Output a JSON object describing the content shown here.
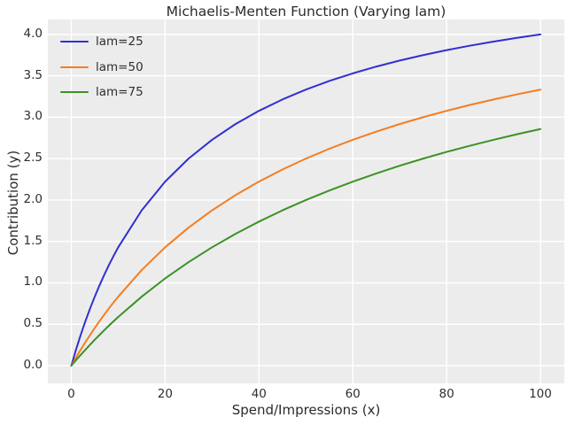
{
  "figure": {
    "background": "#ffffff",
    "axes_background": "#ececec",
    "grid_color": "#ffffff",
    "text_color": "#2e2e2e"
  },
  "chart_data": {
    "type": "line",
    "title": "Michaelis-Menten Function (Varying lam)",
    "xlabel": "Spend/Impressions (x)",
    "ylabel": "Contribution (y)",
    "grid": true,
    "legend_position": "upper left",
    "xlim": [
      -5,
      105.1
    ],
    "ylim": [
      -0.214,
      4.18
    ],
    "x_tick_labels": [
      "0",
      "20",
      "40",
      "60",
      "80",
      "100"
    ],
    "x_tick_values": [
      0,
      20,
      40,
      60,
      80,
      100
    ],
    "y_tick_labels": [
      "0.0",
      "0.5",
      "1.0",
      "1.5",
      "2.0",
      "2.5",
      "3.0",
      "3.5",
      "4.0"
    ],
    "y_tick_values": [
      0,
      0.5,
      1,
      1.5,
      2,
      2.5,
      3,
      3.5,
      4
    ],
    "x": [
      0,
      1,
      2,
      3,
      4,
      5,
      6,
      7,
      8,
      9,
      10,
      15,
      20,
      25,
      30,
      35,
      40,
      45,
      50,
      55,
      60,
      65,
      70,
      75,
      80,
      85,
      90,
      95,
      100
    ],
    "series": [
      {
        "name": "lam=25",
        "color": "#3030d0",
        "y": [
          0,
          0.192,
          0.37,
          0.536,
          0.69,
          0.833,
          0.968,
          1.094,
          1.212,
          1.324,
          1.429,
          1.875,
          2.222,
          2.5,
          2.727,
          2.917,
          3.077,
          3.214,
          3.333,
          3.438,
          3.529,
          3.611,
          3.684,
          3.75,
          3.81,
          3.864,
          3.913,
          3.958,
          4.0
        ]
      },
      {
        "name": "lam=50",
        "color": "#f57d1f",
        "y": [
          0,
          0.098,
          0.192,
          0.283,
          0.37,
          0.455,
          0.536,
          0.614,
          0.69,
          0.763,
          0.833,
          1.154,
          1.429,
          1.667,
          1.875,
          2.059,
          2.222,
          2.368,
          2.5,
          2.619,
          2.727,
          2.826,
          2.917,
          3.0,
          3.077,
          3.148,
          3.214,
          3.276,
          3.333
        ]
      },
      {
        "name": "lam=75",
        "color": "#3b9226",
        "y": [
          0,
          0.066,
          0.13,
          0.192,
          0.253,
          0.313,
          0.37,
          0.427,
          0.482,
          0.536,
          0.588,
          0.833,
          1.053,
          1.25,
          1.429,
          1.591,
          1.739,
          1.875,
          2.0,
          2.115,
          2.222,
          2.321,
          2.414,
          2.5,
          2.581,
          2.656,
          2.727,
          2.794,
          2.857
        ]
      }
    ]
  }
}
